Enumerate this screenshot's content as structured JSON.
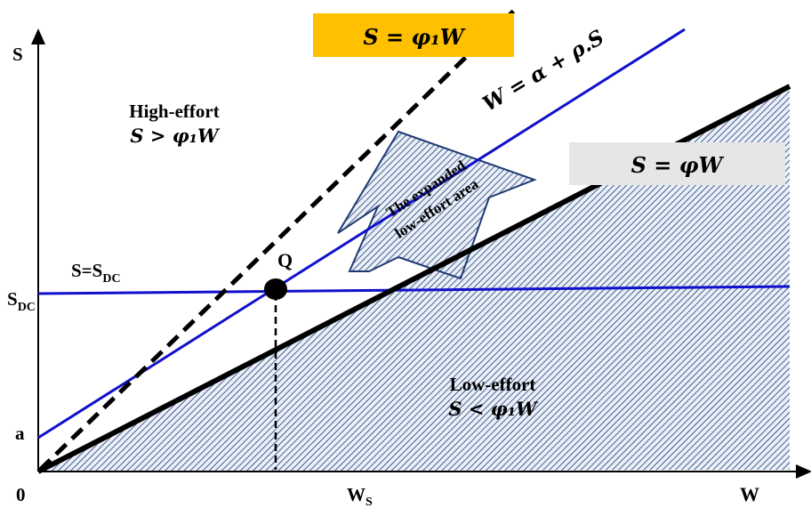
{
  "axes": {
    "y_label": "S",
    "x_label": "W",
    "origin_label": "0",
    "ws_label_main": "W",
    "ws_label_sub": "S",
    "sdc_label_main": "S",
    "sdc_label_sub": "DC",
    "a_label": "a"
  },
  "regions": {
    "high_effort_title": "High-effort",
    "high_effort_condition": "S > φ₁W",
    "low_effort_title": "Low-effort",
    "low_effort_condition": "S < φ₁W",
    "expanded_line1": "The expanded",
    "expanded_line2": "low-effort area"
  },
  "lines": {
    "phi1_box": "S = φ₁W",
    "phi_box": "S = φW",
    "blue_line_label": "W = α + ρ.S",
    "sdc_line_label_main": "S=S",
    "sdc_line_label_sub": "DC",
    "point_label": "Q"
  },
  "colors": {
    "blue_line": "#1010cc",
    "hatch": "#1f3a73",
    "hatch_bg": "#e9eef6",
    "phi1_box_bg": "#ffc000",
    "phi_box_bg": "#e6e6e6"
  }
}
